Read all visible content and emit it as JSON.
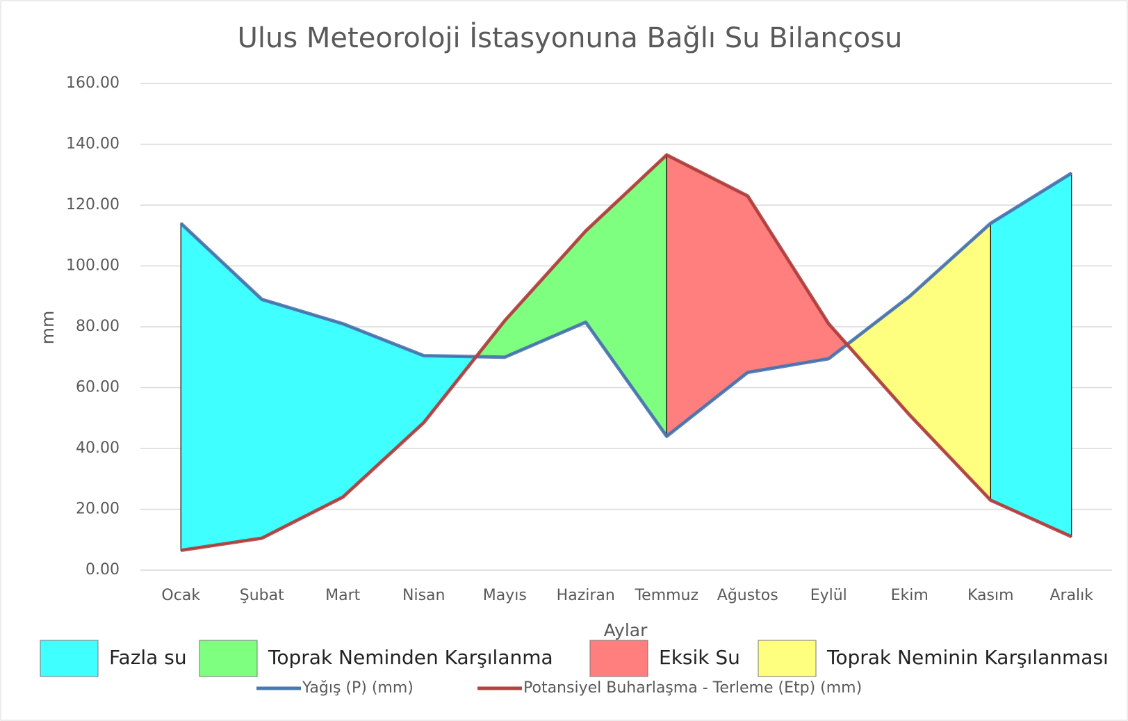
{
  "chart_data": {
    "type": "line",
    "title": "Ulus Meteoroloji İstasyonuna Bağlı Su Bilançosu",
    "x_label": "Aylar",
    "y_label": "mm",
    "categories": [
      "Ocak",
      "Şubat",
      "Mart",
      "Nisan",
      "Mayıs",
      "Haziran",
      "Temmuz",
      "Ağustos",
      "Eylül",
      "Ekim",
      "Kasım",
      "Aralık"
    ],
    "series": [
      {
        "name": "Yağış  (P)  (mm)",
        "color": "#4a78b4",
        "values": [
          114,
          89,
          81,
          70.5,
          70,
          81.5,
          44,
          65,
          69.5,
          90,
          114,
          130.5
        ]
      },
      {
        "name": "Potansiyel Buharlaşma - Terleme (Etp) (mm)",
        "color": "#b5403f",
        "values": [
          6.5,
          10.5,
          24,
          48.5,
          82,
          111.5,
          136.5,
          123,
          81,
          51,
          23,
          11
        ]
      }
    ],
    "areas": [
      {
        "name": "Fazla su",
        "color": "#40ffff",
        "ranges": [
          [
            0,
            4
          ],
          [
            10,
            11
          ]
        ]
      },
      {
        "name": "Toprak Neminden Karşılanma",
        "color": "#7fff7f",
        "ranges": [
          [
            3,
            6
          ]
        ]
      },
      {
        "name": "Eksik Su",
        "color": "#ff7f7f",
        "ranges": [
          [
            6,
            9
          ]
        ]
      },
      {
        "name": "Toprak Neminin Karşılanması",
        "color": "#ffff7f",
        "ranges": [
          [
            8,
            10
          ]
        ]
      }
    ],
    "ylim": [
      0,
      160
    ],
    "yticks": [
      {
        "value": 0,
        "label": "0.00"
      },
      {
        "value": 20,
        "label": "20.00"
      },
      {
        "value": 40,
        "label": "40.00"
      },
      {
        "value": 60,
        "label": "60.00"
      },
      {
        "value": 80,
        "label": "80.00"
      },
      {
        "value": 100,
        "label": "100.00"
      },
      {
        "value": 120,
        "label": "120.00"
      },
      {
        "value": 140,
        "label": "140.00"
      },
      {
        "value": 160,
        "label": "160.00"
      }
    ],
    "grid": true
  }
}
